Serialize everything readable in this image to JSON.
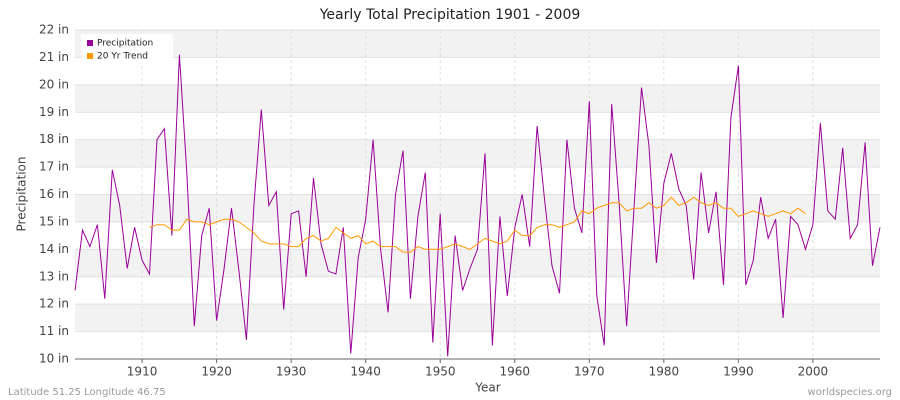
{
  "chart_data": {
    "type": "line",
    "title": "Yearly Total Precipitation 1901 - 2009",
    "x_label": "Year",
    "y_label": "Precipitation",
    "footer_left": "Latitude 51.25 Longitude 46.75",
    "footer_right": "worldspecies.org",
    "x": [
      1901,
      1902,
      1903,
      1904,
      1905,
      1906,
      1907,
      1908,
      1909,
      1910,
      1911,
      1912,
      1913,
      1914,
      1915,
      1916,
      1917,
      1918,
      1919,
      1920,
      1921,
      1922,
      1923,
      1924,
      1925,
      1926,
      1927,
      1928,
      1929,
      1930,
      1931,
      1932,
      1933,
      1934,
      1935,
      1936,
      1937,
      1938,
      1939,
      1940,
      1941,
      1942,
      1943,
      1944,
      1945,
      1946,
      1947,
      1948,
      1949,
      1950,
      1951,
      1952,
      1953,
      1954,
      1955,
      1956,
      1957,
      1958,
      1959,
      1960,
      1961,
      1962,
      1963,
      1964,
      1965,
      1966,
      1967,
      1968,
      1969,
      1970,
      1971,
      1972,
      1973,
      1974,
      1975,
      1976,
      1977,
      1978,
      1979,
      1980,
      1981,
      1982,
      1983,
      1984,
      1985,
      1986,
      1987,
      1988,
      1989,
      1990,
      1991,
      1992,
      1993,
      1994,
      1995,
      1996,
      1997,
      1998,
      1999,
      2000,
      2001,
      2002,
      2003,
      2004,
      2005,
      2006,
      2007,
      2008,
      2009
    ],
    "series": [
      {
        "name": "Precipitation",
        "color": "#990099",
        "values": [
          12.5,
          14.7,
          14.1,
          14.9,
          12.2,
          16.9,
          15.6,
          13.3,
          14.8,
          13.6,
          13.1,
          18.0,
          18.4,
          14.5,
          21.1,
          16.8,
          11.2,
          14.5,
          15.5,
          11.4,
          13.3,
          15.5,
          13.2,
          10.7,
          15.6,
          19.1,
          15.6,
          16.1,
          11.8,
          15.3,
          15.4,
          13.0,
          16.6,
          14.2,
          13.2,
          13.1,
          14.8,
          10.2,
          13.7,
          15.1,
          18.0,
          14.0,
          11.7,
          16.0,
          17.6,
          12.2,
          15.2,
          16.8,
          10.6,
          15.3,
          10.1,
          14.5,
          12.5,
          13.3,
          14.0,
          17.5,
          10.5,
          15.2,
          12.3,
          14.8,
          16.0,
          14.1,
          18.5,
          15.8,
          13.4,
          12.4,
          18.0,
          15.5,
          14.6,
          19.4,
          12.3,
          10.5,
          19.3,
          15.7,
          11.2,
          15.5,
          19.9,
          17.8,
          13.5,
          16.4,
          17.5,
          16.2,
          15.6,
          12.9,
          16.8,
          14.6,
          16.1,
          12.7,
          18.8,
          20.7,
          12.7,
          13.6,
          15.9,
          14.4,
          15.1,
          11.5,
          15.2,
          14.9,
          14.0,
          14.9,
          18.6,
          15.4,
          15.1,
          17.7,
          14.4,
          14.9,
          17.9,
          13.4,
          14.8
        ]
      },
      {
        "name": "20 Yr Trend",
        "color": "#ff9900",
        "values": [
          null,
          null,
          null,
          null,
          null,
          null,
          null,
          null,
          null,
          null,
          14.8,
          14.9,
          14.9,
          14.7,
          14.7,
          15.1,
          15.0,
          15.0,
          14.9,
          15.0,
          15.1,
          15.1,
          15.0,
          14.8,
          14.6,
          14.3,
          14.2,
          14.2,
          14.2,
          14.1,
          14.1,
          14.4,
          14.5,
          14.3,
          14.4,
          14.8,
          14.6,
          14.4,
          14.5,
          14.2,
          14.3,
          14.1,
          14.1,
          14.1,
          13.9,
          13.9,
          14.1,
          14.0,
          14.0,
          14.0,
          14.1,
          14.2,
          14.1,
          14.0,
          14.2,
          14.4,
          14.3,
          14.2,
          14.3,
          14.7,
          14.5,
          14.5,
          14.8,
          14.9,
          14.9,
          14.8,
          14.9,
          15.0,
          15.4,
          15.3,
          15.5,
          15.6,
          15.7,
          15.7,
          15.4,
          15.5,
          15.5,
          15.7,
          15.5,
          15.6,
          15.9,
          15.6,
          15.7,
          15.9,
          15.7,
          15.6,
          15.7,
          15.5,
          15.5,
          15.2,
          15.3,
          15.4,
          15.3,
          15.2,
          15.3,
          15.4,
          15.3,
          15.5,
          15.3,
          null,
          null,
          null,
          null,
          null,
          null,
          null,
          null,
          null,
          null
        ]
      }
    ],
    "xlim": [
      1901,
      2009
    ],
    "xticks": [
      1910,
      1920,
      1930,
      1940,
      1950,
      1960,
      1970,
      1980,
      1990,
      2000
    ],
    "ylim": [
      10,
      22
    ],
    "yticks": [
      {
        "value": 10,
        "label": "10 in"
      },
      {
        "value": 11,
        "label": "11 in"
      },
      {
        "value": 12,
        "label": "12 in"
      },
      {
        "value": 13,
        "label": "13 in"
      },
      {
        "value": 14,
        "label": "14 in"
      },
      {
        "value": 15,
        "label": "15 in"
      },
      {
        "value": 16,
        "label": "16 in"
      },
      {
        "value": 17,
        "label": "17 in"
      },
      {
        "value": 18,
        "label": "18 in"
      },
      {
        "value": 19,
        "label": "19 in"
      },
      {
        "value": 20,
        "label": "20 in"
      },
      {
        "value": 21,
        "label": "21 in"
      },
      {
        "value": 22,
        "label": "22 in"
      }
    ],
    "grid": true,
    "legend": "top-left"
  }
}
